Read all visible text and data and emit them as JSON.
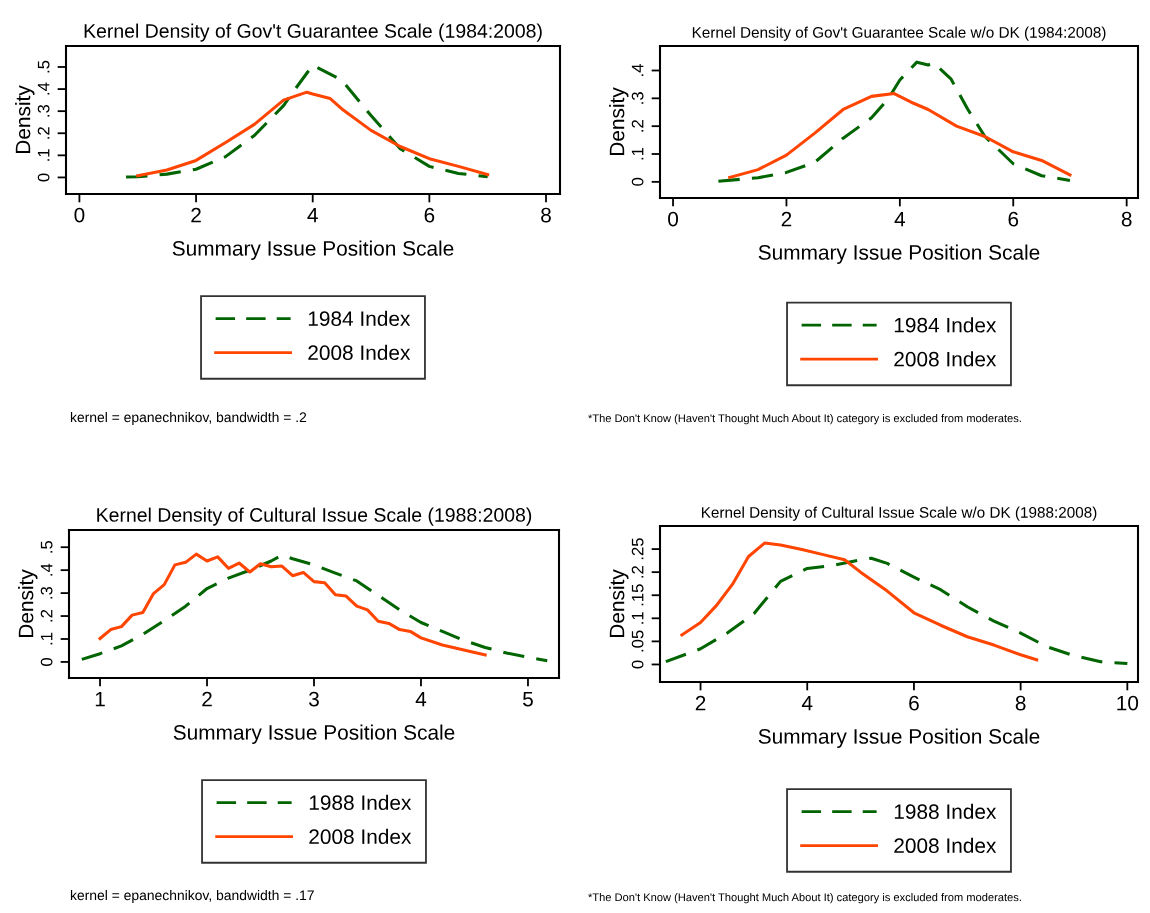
{
  "chart_data": [
    {
      "type": "line",
      "title": "Kernel Density of Gov't Guarantee Scale (1984:2008)",
      "xlabel": "Summary Issue Position Scale",
      "ylabel": "Density",
      "xlim": [
        -0.23,
        8.24
      ],
      "ylim": [
        -0.075,
        0.595
      ],
      "xticks": [
        0,
        2,
        4,
        6,
        8
      ],
      "yticks": [
        0,
        {
          "value": 0.1,
          "label": ".1"
        },
        {
          "value": 0.2,
          "label": ".2"
        },
        {
          "value": 0.3,
          "label": ".3"
        },
        {
          "value": 0.4,
          "label": ".4"
        },
        {
          "value": 0.5,
          "label": ".5"
        }
      ],
      "grid": false,
      "legend": "bottom",
      "annotations": [
        "kernel = epanechnikov, bandwidth = .2"
      ],
      "series": [
        {
          "name": "1984 Index",
          "color": "#006400",
          "line_style": "dashed",
          "x": [
            0.8,
            1.0,
            1.5,
            2.0,
            2.5,
            3.0,
            3.5,
            3.7,
            4.0,
            4.5,
            5.0,
            5.5,
            6.0,
            6.5,
            7.0
          ],
          "values": [
            0.002,
            0.003,
            0.015,
            0.037,
            0.093,
            0.19,
            0.325,
            0.4,
            0.508,
            0.44,
            0.28,
            0.13,
            0.05,
            0.018,
            0.003
          ]
        },
        {
          "name": "2008 Index",
          "color": "#ff4500",
          "line_style": "solid",
          "x": [
            1.0,
            1.5,
            2.0,
            2.5,
            3.0,
            3.5,
            3.9,
            4.0,
            4.3,
            4.5,
            5.0,
            5.5,
            6.0,
            6.5,
            7.0
          ],
          "values": [
            0.008,
            0.034,
            0.077,
            0.157,
            0.24,
            0.35,
            0.386,
            0.378,
            0.357,
            0.31,
            0.213,
            0.14,
            0.085,
            0.05,
            0.013
          ]
        }
      ]
    },
    {
      "type": "line",
      "title": "Kernel Density of Gov't Guarantee Scale w/o DK (1984:2008)",
      "xlabel": "Summary Issue Position Scale",
      "ylabel": "Density",
      "xlim": [
        -0.23,
        8.2
      ],
      "ylim": [
        -0.058,
        0.488
      ],
      "xticks": [
        0,
        2,
        4,
        6,
        8
      ],
      "yticks": [
        0,
        {
          "value": 0.1,
          "label": ".1"
        },
        {
          "value": 0.2,
          "label": ".2"
        },
        {
          "value": 0.3,
          "label": ".3"
        },
        {
          "value": 0.4,
          "label": ".4"
        }
      ],
      "grid": false,
      "legend": "bottom",
      "annotations": [
        "*The Don't Know (Haven't Thought Much About It) category is excluded from moderates."
      ],
      "series": [
        {
          "name": "1984 Index",
          "color": "#006400",
          "line_style": "dashed",
          "x": [
            0.8,
            1.5,
            2.0,
            2.5,
            3.0,
            3.5,
            3.8,
            4.0,
            4.3,
            4.5,
            4.6,
            4.9,
            5.2,
            5.5,
            6.0,
            6.5,
            7.0
          ],
          "values": [
            0.002,
            0.015,
            0.034,
            0.07,
            0.157,
            0.23,
            0.3,
            0.366,
            0.43,
            0.42,
            0.427,
            0.37,
            0.26,
            0.163,
            0.065,
            0.022,
            0.005
          ]
        },
        {
          "name": "2008 Index",
          "color": "#ff4500",
          "line_style": "solid",
          "x": [
            1.0,
            1.5,
            2.0,
            2.5,
            3.0,
            3.5,
            3.9,
            4.2,
            4.5,
            5.0,
            5.5,
            6.0,
            6.5,
            7.0
          ],
          "values": [
            0.016,
            0.044,
            0.096,
            0.175,
            0.26,
            0.307,
            0.317,
            0.286,
            0.26,
            0.2,
            0.163,
            0.108,
            0.077,
            0.025
          ]
        }
      ]
    },
    {
      "type": "line",
      "title": "Kernel Density of Cultural Issue Scale (1988:2008)",
      "xlabel": "Summary Issue Position Scale",
      "ylabel": "Density",
      "xlim": [
        0.71,
        5.29
      ],
      "ylim": [
        -0.07,
        0.575
      ],
      "xticks": [
        1,
        2,
        3,
        4,
        5
      ],
      "yticks": [
        0,
        {
          "value": 0.1,
          "label": ".1"
        },
        {
          "value": 0.2,
          "label": ".2"
        },
        {
          "value": 0.3,
          "label": ".3"
        },
        {
          "value": 0.4,
          "label": ".4"
        },
        {
          "value": 0.5,
          "label": ".5"
        }
      ],
      "grid": false,
      "legend": "bottom",
      "annotations": [
        "kernel = epanechnikov, bandwidth = .17"
      ],
      "series": [
        {
          "name": "1988 Index",
          "color": "#006400",
          "line_style": "dashed",
          "x": [
            0.83,
            1.0,
            1.2,
            1.4,
            1.6,
            1.8,
            2.0,
            2.2,
            2.4,
            2.6,
            2.7,
            2.8,
            3.0,
            3.2,
            3.4,
            3.6,
            3.8,
            4.0,
            4.2,
            4.4,
            4.6,
            4.8,
            5.0,
            5.18
          ],
          "values": [
            0.011,
            0.036,
            0.07,
            0.12,
            0.18,
            0.243,
            0.32,
            0.365,
            0.4,
            0.44,
            0.465,
            0.45,
            0.423,
            0.387,
            0.353,
            0.29,
            0.227,
            0.172,
            0.133,
            0.094,
            0.063,
            0.039,
            0.02,
            0.005
          ]
        },
        {
          "name": "2008 Index",
          "color": "#ff4500",
          "line_style": "solid",
          "x": [
            1.0,
            1.1,
            1.2,
            1.3,
            1.4,
            1.5,
            1.6,
            1.7,
            1.8,
            1.9,
            2.0,
            2.1,
            2.2,
            2.3,
            2.4,
            2.5,
            2.6,
            2.7,
            2.8,
            2.9,
            3.0,
            3.1,
            3.2,
            3.3,
            3.4,
            3.5,
            3.6,
            3.7,
            3.8,
            3.9,
            4.0,
            4.2,
            4.4,
            4.6
          ],
          "values": [
            0.102,
            0.141,
            0.154,
            0.204,
            0.215,
            0.298,
            0.337,
            0.423,
            0.434,
            0.47,
            0.44,
            0.458,
            0.408,
            0.431,
            0.392,
            0.428,
            0.415,
            0.418,
            0.376,
            0.39,
            0.35,
            0.345,
            0.293,
            0.287,
            0.243,
            0.227,
            0.177,
            0.168,
            0.141,
            0.133,
            0.105,
            0.074,
            0.052,
            0.031
          ]
        }
      ]
    },
    {
      "type": "line",
      "title": "Kernel Density of Cultural Issue Scale w/o DK (1988:2008)",
      "xlabel": "Summary Issue Position Scale",
      "ylabel": "Density",
      "xlim": [
        1.24,
        10.2
      ],
      "ylim": [
        -0.038,
        0.3
      ],
      "xticks": [
        2,
        4,
        6,
        8,
        10
      ],
      "yticks": [
        0,
        {
          "value": 0.05,
          "label": ".05"
        },
        {
          "value": 0.1,
          "label": ".1"
        },
        {
          "value": 0.15,
          "label": ".15"
        },
        {
          "value": 0.2,
          "label": ".2"
        },
        {
          "value": 0.25,
          "label": ".25"
        }
      ],
      "grid": false,
      "legend": "bottom",
      "annotations": [
        "*The Don't Know (Haven't Thought Much About It) category is excluded from moderates."
      ],
      "series": [
        {
          "name": "1988 Index",
          "color": "#006400",
          "line_style": "dashed",
          "x": [
            1.35,
            2.0,
            2.5,
            3.0,
            3.5,
            4.0,
            4.5,
            5.0,
            5.2,
            5.5,
            6.0,
            6.5,
            7.0,
            7.5,
            8.0,
            8.5,
            9.0,
            9.5,
            10.0
          ],
          "values": [
            0.006,
            0.034,
            0.068,
            0.11,
            0.18,
            0.208,
            0.215,
            0.227,
            0.23,
            0.219,
            0.189,
            0.162,
            0.125,
            0.094,
            0.068,
            0.038,
            0.019,
            0.006,
            0.002
          ]
        },
        {
          "name": "2008 Index",
          "color": "#ff4500",
          "line_style": "solid",
          "x": [
            1.65,
            2.0,
            2.3,
            2.6,
            2.9,
            3.2,
            3.5,
            3.9,
            4.3,
            4.7,
            5.0,
            5.5,
            6.0,
            6.5,
            7.0,
            7.5,
            8.0,
            8.3
          ],
          "values": [
            0.064,
            0.091,
            0.128,
            0.174,
            0.234,
            0.263,
            0.259,
            0.249,
            0.238,
            0.227,
            0.2,
            0.159,
            0.112,
            0.085,
            0.06,
            0.042,
            0.021,
            0.01
          ]
        }
      ]
    }
  ]
}
